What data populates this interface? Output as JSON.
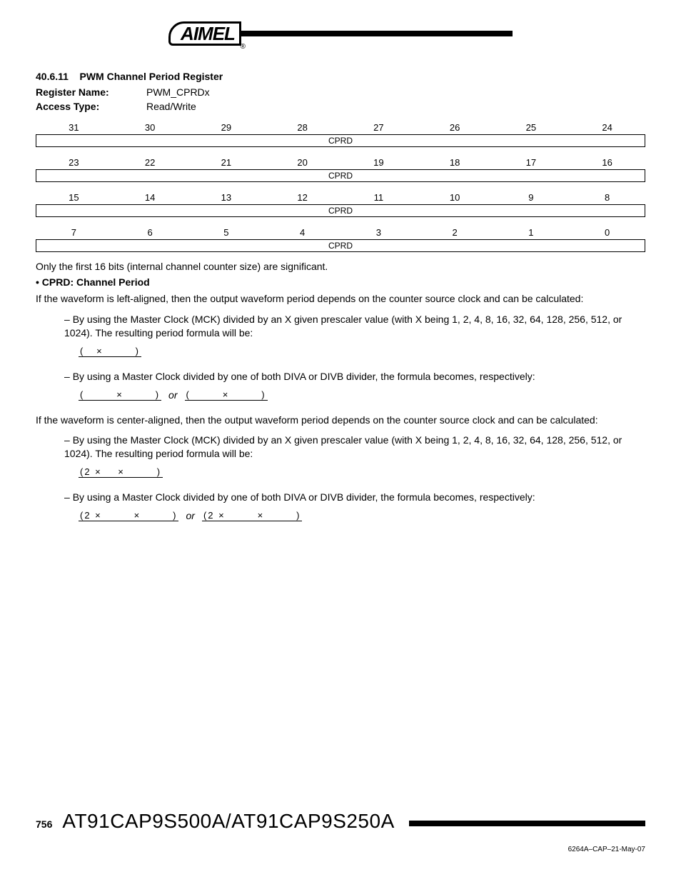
{
  "logo": {
    "text": "AIMEL",
    "reg": "®"
  },
  "section": {
    "number": "40.6.11",
    "title": "PWM Channel Period Register"
  },
  "meta": {
    "register_name_label": "Register Name:",
    "register_name_value": "PWM_CPRDx",
    "access_type_label": "Access Type:",
    "access_type_value": "Read/Write"
  },
  "bit_rows": [
    {
      "bits": [
        "31",
        "30",
        "29",
        "28",
        "27",
        "26",
        "25",
        "24"
      ],
      "field": "CPRD"
    },
    {
      "bits": [
        "23",
        "22",
        "21",
        "20",
        "19",
        "18",
        "17",
        "16"
      ],
      "field": "CPRD"
    },
    {
      "bits": [
        "15",
        "14",
        "13",
        "12",
        "11",
        "10",
        "9",
        "8"
      ],
      "field": "CPRD"
    },
    {
      "bits": [
        "7",
        "6",
        "5",
        "4",
        "3",
        "2",
        "1",
        "0"
      ],
      "field": "CPRD"
    }
  ],
  "note_text": "Only the first 16 bits (internal channel counter size) are significant.",
  "field_desc": {
    "name": "CPRD:",
    "title": "Channel Period"
  },
  "para_left": "If the waveform is left-aligned, then the output waveform period depends on the counter source clock and can be calculated:",
  "dash1": "By using the Master Clock (MCK) divided by an X given prescaler value (with X being 1, 2, 4, 8, 16, 32, 64, 128, 256, 512, or 1024). The resulting period formula will be:",
  "formula1": "(   ×        )",
  "dash2": "By using a Master Clock divided by one of both DIVA or DIVB divider, the formula becomes, respectively:",
  "formula2a": "(        ×        )",
  "formula2b": "(        ×        )",
  "or_label": "or",
  "para_center": "If the waveform is center-aligned, then the output waveform period depends on the counter source clock and can be calculated:",
  "dash3": "By using the Master Clock (MCK) divided by an X given prescaler value (with X being 1, 2, 4, 8, 16, 32, 64, 128, 256, 512, or 1024). The resulting period formula will be:",
  "formula3": "(2 ×    ×        )",
  "dash4": "By using a Master Clock divided by one of both DIVA or DIVB divider, the formula becomes, respectively:",
  "formula4a": "(2 ×        ×        )",
  "formula4b": "(2 ×        ×        )",
  "footer": {
    "page": "756",
    "title": "AT91CAP9S500A/AT91CAP9S250A",
    "doc_id": "6264A–CAP–21-May-07"
  }
}
